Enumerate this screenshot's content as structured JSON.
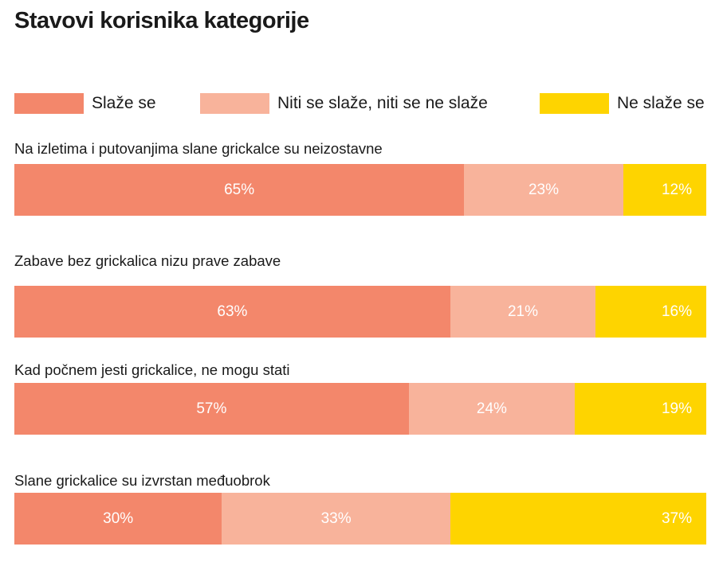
{
  "title": "Stavovi korisnika kategorije",
  "legend": [
    {
      "label": "Slaže se",
      "color": "#f3876b"
    },
    {
      "label": "Niti se slaže, niti se ne slaže",
      "color": "#f8b39b"
    },
    {
      "label": "Ne slaže se",
      "color": "#fed400"
    }
  ],
  "chart_data": {
    "type": "bar",
    "orientation": "horizontal",
    "stacked": true,
    "title": "Stavovi korisnika kategorije",
    "categories": [
      "Na izletima i putovanjima slane grickalce su neizostavne",
      "Zabave bez grickalica nizu prave zabave",
      "Kad počnem jesti grickalice, ne mogu stati",
      "Slane grickalice su izvrstan međuobrok"
    ],
    "series": [
      {
        "name": "Slaže se",
        "values": [
          65,
          63,
          57,
          30
        ],
        "labels": [
          "65%",
          "63%",
          "57%",
          "30%"
        ],
        "color": "#f3876b"
      },
      {
        "name": "Niti se slaže, niti se ne slaže",
        "values": [
          23,
          21,
          24,
          33
        ],
        "labels": [
          "23%",
          "21%",
          "24%",
          "33%"
        ],
        "color": "#f8b39b"
      },
      {
        "name": "Ne slaže se",
        "values": [
          12,
          16,
          19,
          37
        ],
        "labels": [
          "12%",
          "16%",
          "19%",
          "37%"
        ],
        "color": "#fed400"
      }
    ],
    "xlim": [
      0,
      100
    ],
    "legend_position": "top",
    "grid": false
  }
}
